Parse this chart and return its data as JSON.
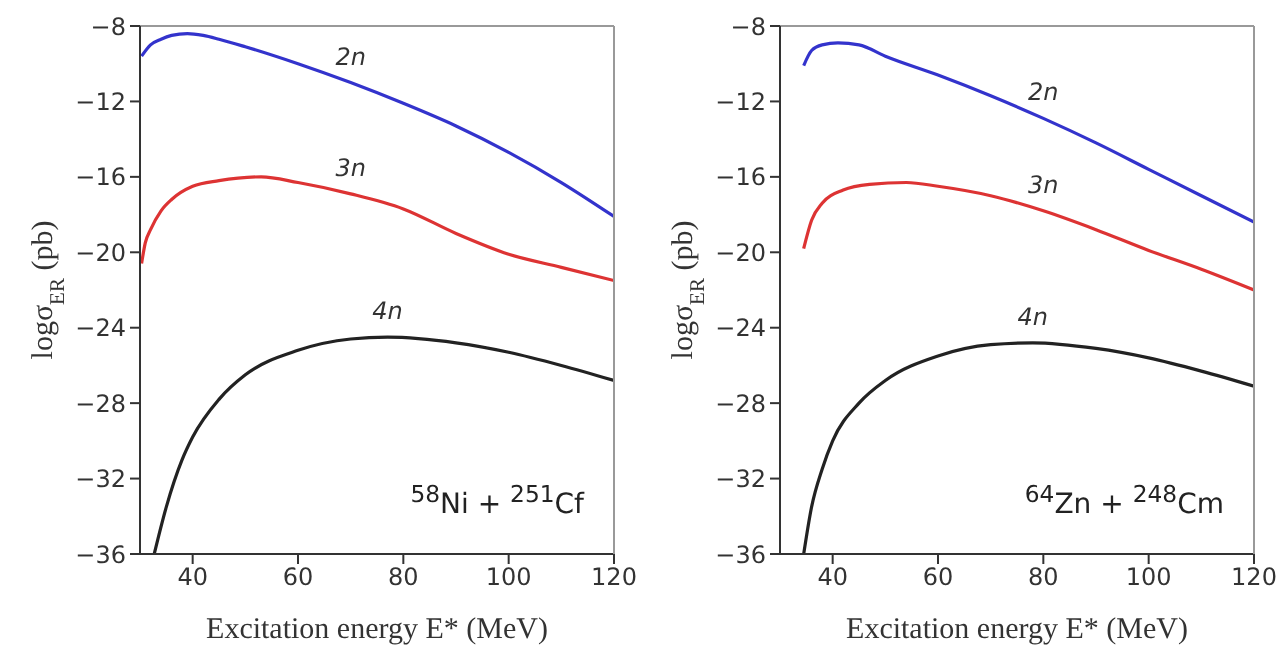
{
  "chart_data": [
    {
      "type": "line",
      "xlabel": "Excitation energy E* (MeV)",
      "ylabel": "logσ$_{ER}$ (pb)",
      "annotations": [
        "$^{58}$Ni + $^{251}$Cf"
      ],
      "xlim": [
        30,
        120
      ],
      "xticks": [
        40,
        60,
        80,
        100,
        120
      ],
      "ylim": [
        -36,
        -8
      ],
      "yticks": [
        -36,
        -32,
        -28,
        -24,
        -20,
        -16,
        -12,
        -8
      ],
      "grid": false,
      "legend": false,
      "marker": "none",
      "line_style": "solid",
      "series": [
        {
          "name": "2n",
          "color": "#3333cc",
          "x": [
            30.3,
            32,
            34,
            36,
            39,
            42,
            45,
            50,
            60,
            70,
            80,
            90,
            100,
            110,
            120
          ],
          "values": [
            -9.6,
            -9.0,
            -8.7,
            -8.5,
            -8.4,
            -8.5,
            -8.7,
            -9.1,
            -10.0,
            -11.0,
            -12.1,
            -13.3,
            -14.7,
            -16.3,
            -18.1
          ]
        },
        {
          "name": "3n",
          "color": "#dd3333",
          "x": [
            30.3,
            31,
            32,
            34,
            36,
            40,
            45,
            53,
            60,
            70,
            80,
            90,
            100,
            110,
            120
          ],
          "values": [
            -20.6,
            -19.5,
            -18.8,
            -17.8,
            -17.2,
            -16.5,
            -16.2,
            -16.0,
            -16.3,
            -16.9,
            -17.7,
            -19.0,
            -20.1,
            -20.8,
            -21.5
          ]
        },
        {
          "name": "4n",
          "color": "#222222",
          "x": [
            32.7,
            35,
            38,
            40,
            45,
            50,
            60,
            70,
            77,
            90,
            100,
            110,
            120
          ],
          "values": [
            -36,
            -33.5,
            -31,
            -29.8,
            -27.8,
            -26.5,
            -25.2,
            -24.6,
            -24.5,
            -24.8,
            -25.3,
            -26.0,
            -26.8
          ]
        }
      ]
    },
    {
      "type": "line",
      "xlabel": "Excitation energy E* (MeV)",
      "ylabel": "logσ$_{ER}$ (pb)",
      "annotations": [
        "$^{64}$Zn + $^{248}$Cm"
      ],
      "xlim": [
        30,
        120
      ],
      "xticks": [
        40,
        60,
        80,
        100,
        120
      ],
      "ylim": [
        -36,
        -8
      ],
      "yticks": [
        -36,
        -32,
        -28,
        -24,
        -20,
        -16,
        -12,
        -8
      ],
      "grid": false,
      "legend": false,
      "marker": "none",
      "line_style": "solid",
      "series": [
        {
          "name": "2n",
          "color": "#3333cc",
          "x": [
            34.5,
            36,
            38,
            41,
            45,
            50,
            60,
            70,
            80,
            90,
            100,
            110,
            120
          ],
          "values": [
            -10.1,
            -9.3,
            -9.0,
            -8.9,
            -9.0,
            -9.6,
            -10.6,
            -11.7,
            -12.9,
            -14.2,
            -15.6,
            -17.0,
            -18.4
          ]
        },
        {
          "name": "3n",
          "color": "#dd3333",
          "x": [
            34.5,
            36,
            38,
            42,
            47,
            54,
            60,
            70,
            80,
            90,
            100,
            110,
            120
          ],
          "values": [
            -19.8,
            -18.3,
            -17.4,
            -16.7,
            -16.4,
            -16.3,
            -16.5,
            -17.0,
            -17.8,
            -18.8,
            -19.9,
            -20.9,
            -22.0
          ]
        },
        {
          "name": "4n",
          "color": "#222222",
          "x": [
            34.5,
            36,
            38,
            40,
            45,
            50,
            60,
            70,
            78,
            90,
            100,
            110,
            120
          ],
          "values": [
            -36.0,
            -33.5,
            -31.5,
            -30.0,
            -28.0,
            -26.8,
            -25.5,
            -24.9,
            -24.8,
            -25.1,
            -25.6,
            -26.3,
            -27.1
          ]
        }
      ]
    }
  ]
}
